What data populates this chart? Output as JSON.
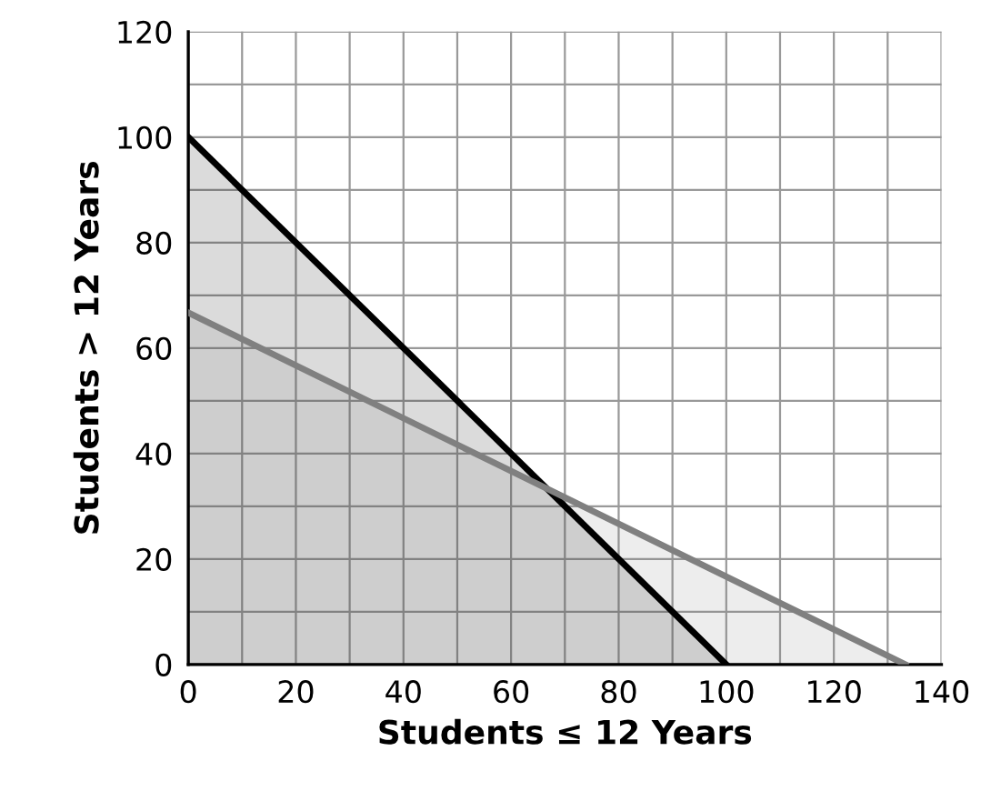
{
  "chart_data": {
    "type": "area",
    "xlabel": "Students ≤ 12 Years",
    "ylabel": "Students > 12 Years",
    "series": [
      {
        "color": "#000000",
        "x": [
          0,
          100
        ],
        "values": [
          100,
          0
        ]
      },
      {
        "color": "#808080",
        "x": [
          0,
          133.3
        ],
        "values": [
          66.7,
          0
        ]
      }
    ],
    "xlim": [
      0,
      140
    ],
    "ylim": [
      0,
      120
    ],
    "xticks": [
      0,
      {
        "value": 10,
        "label": null
      },
      20,
      {
        "value": 30,
        "label": null
      },
      40,
      {
        "value": 50,
        "label": null
      },
      60,
      {
        "value": 70,
        "label": null
      },
      80,
      {
        "value": 90,
        "label": null
      },
      100,
      {
        "value": 110,
        "label": null
      },
      120,
      {
        "value": 130,
        "label": null
      },
      140
    ],
    "yticks": [
      0,
      {
        "value": 10,
        "label": null
      },
      20,
      {
        "value": 30,
        "label": null
      },
      40,
      {
        "value": 50,
        "label": null
      },
      60,
      {
        "value": 70,
        "label": null
      },
      80,
      {
        "value": 90,
        "label": null
      },
      100,
      {
        "value": 110,
        "label": null
      },
      120
    ],
    "grid": true,
    "legend": false
  }
}
